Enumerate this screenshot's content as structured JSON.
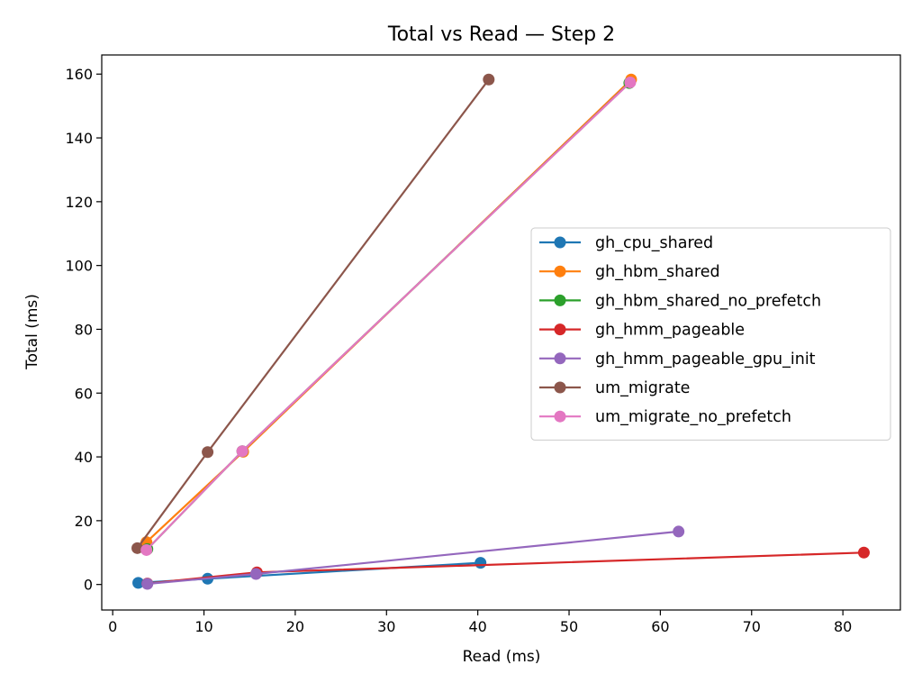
{
  "chart_data": {
    "type": "line",
    "title": "Total vs Read — Step 2",
    "xlabel": "Read (ms)",
    "ylabel": "Total (ms)",
    "xlim": [
      -1.2,
      86.3
    ],
    "ylim": [
      -8,
      166
    ],
    "xticks": [
      0,
      10,
      20,
      30,
      40,
      50,
      60,
      70,
      80
    ],
    "yticks": [
      0,
      20,
      40,
      60,
      80,
      100,
      120,
      140,
      160
    ],
    "grid": false,
    "legend_position": "center-right",
    "series": [
      {
        "name": "gh_cpu_shared",
        "color": "#1f77b4",
        "x": [
          2.8,
          10.4,
          40.3
        ],
        "y": [
          0.5,
          1.8,
          6.8
        ]
      },
      {
        "name": "gh_hbm_shared",
        "color": "#ff7f0e",
        "x": [
          3.7,
          14.3,
          56.8
        ],
        "y": [
          13.3,
          41.6,
          158.3
        ]
      },
      {
        "name": "gh_hbm_shared_no_prefetch",
        "color": "#2ca02c",
        "x": [
          3.8,
          14.2,
          56.6
        ],
        "y": [
          11.1,
          41.8,
          157.2
        ]
      },
      {
        "name": "gh_hmm_pageable",
        "color": "#d62728",
        "x": [
          3.8,
          15.8,
          82.3
        ],
        "y": [
          0.3,
          3.8,
          10.0
        ]
      },
      {
        "name": "gh_hmm_pageable_gpu_init",
        "color": "#9467bd",
        "x": [
          3.8,
          15.7,
          62.0
        ],
        "y": [
          0.2,
          3.3,
          16.6
        ]
      },
      {
        "name": "um_migrate",
        "color": "#8c564b",
        "x": [
          2.7,
          10.4,
          41.2
        ],
        "y": [
          11.4,
          41.5,
          158.3
        ]
      },
      {
        "name": "um_migrate_no_prefetch",
        "color": "#e377c2",
        "x": [
          3.7,
          14.2,
          56.7
        ],
        "y": [
          10.8,
          41.8,
          157.4
        ]
      }
    ]
  }
}
